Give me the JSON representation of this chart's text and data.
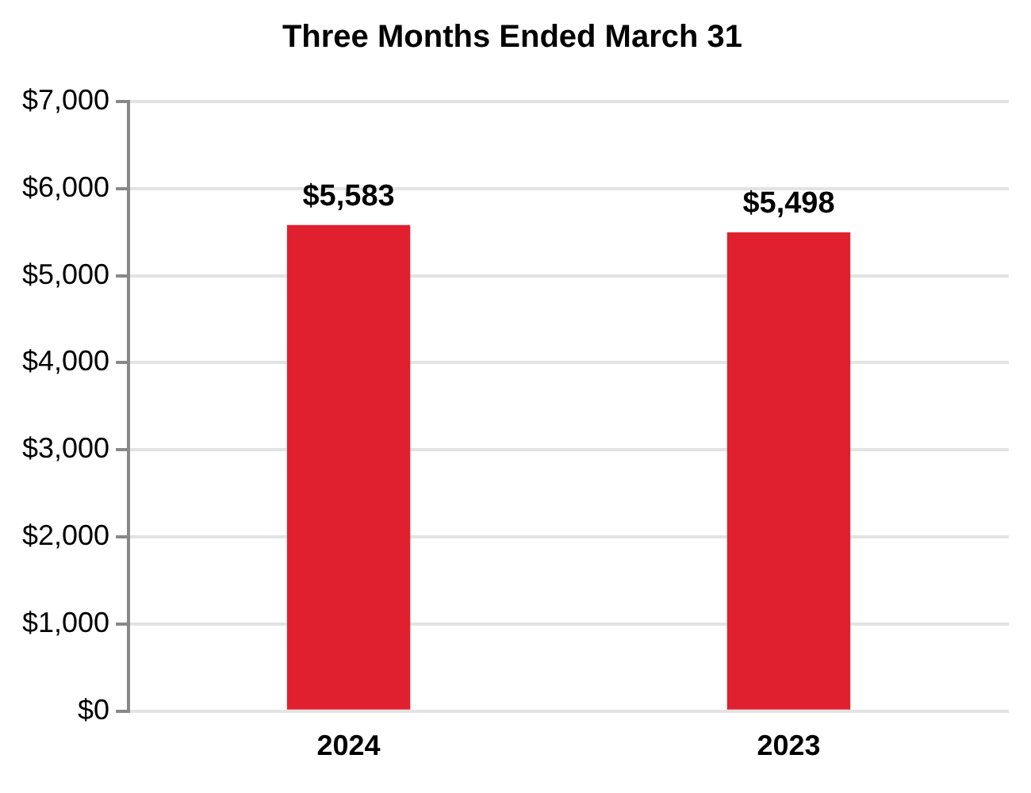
{
  "chart_data": {
    "type": "bar",
    "title": "Three Months Ended March 31",
    "categories": [
      "2024",
      "2023"
    ],
    "values": [
      5583,
      5498
    ],
    "value_labels": [
      "$5,583",
      "$5,498"
    ],
    "color": "#e0202e",
    "ylim": [
      0,
      7000
    ],
    "yticks": [
      {
        "value": 0,
        "label": "$0"
      },
      {
        "value": 1000,
        "label": "$1,000"
      },
      {
        "value": 2000,
        "label": "$2,000"
      },
      {
        "value": 3000,
        "label": "$3,000"
      },
      {
        "value": 4000,
        "label": "$4,000"
      },
      {
        "value": 5000,
        "label": "$5,000"
      },
      {
        "value": 6000,
        "label": "$6,000"
      },
      {
        "value": 7000,
        "label": "$7,000"
      }
    ],
    "grid": "y"
  }
}
